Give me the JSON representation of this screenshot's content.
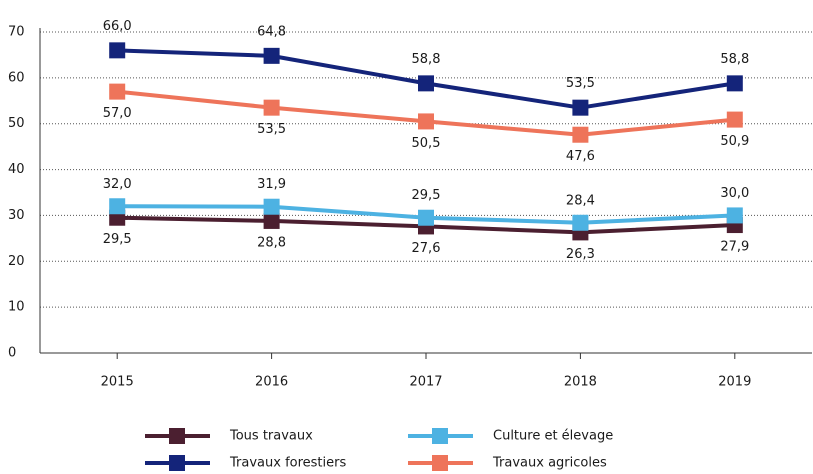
{
  "chart_data": {
    "type": "line",
    "categories": [
      "2015",
      "2016",
      "2017",
      "2018",
      "2019"
    ],
    "ylim": [
      0,
      70
    ],
    "yticks": [
      0,
      10,
      20,
      30,
      40,
      50,
      60,
      70
    ],
    "grid": true,
    "series": [
      {
        "name": "Tous travaux",
        "color": "#4b1f30",
        "values": [
          29.5,
          28.8,
          27.6,
          26.3,
          27.9
        ],
        "value_labels": [
          "29,5",
          "28,8",
          "27,6",
          "26,3",
          "27,9"
        ]
      },
      {
        "name": "Culture et élevage",
        "color": "#4db2e2",
        "values": [
          32.0,
          31.9,
          29.5,
          28.4,
          30.0
        ],
        "value_labels": [
          "32,0",
          "31,9",
          "29,5",
          "28,4",
          "30,0"
        ]
      },
      {
        "name": "Travaux forestiers",
        "color": "#14247a",
        "values": [
          66.0,
          64.8,
          58.8,
          53.5,
          58.8
        ],
        "value_labels": [
          "66,0",
          "64,8",
          "58,8",
          "53,5",
          "58,8"
        ]
      },
      {
        "name": "Travaux agricoles",
        "color": "#ee745a",
        "values": [
          57.0,
          53.5,
          50.5,
          47.6,
          50.9
        ],
        "value_labels": [
          "57,0",
          "53,5",
          "50,5",
          "47,6",
          "50,9"
        ]
      }
    ]
  }
}
